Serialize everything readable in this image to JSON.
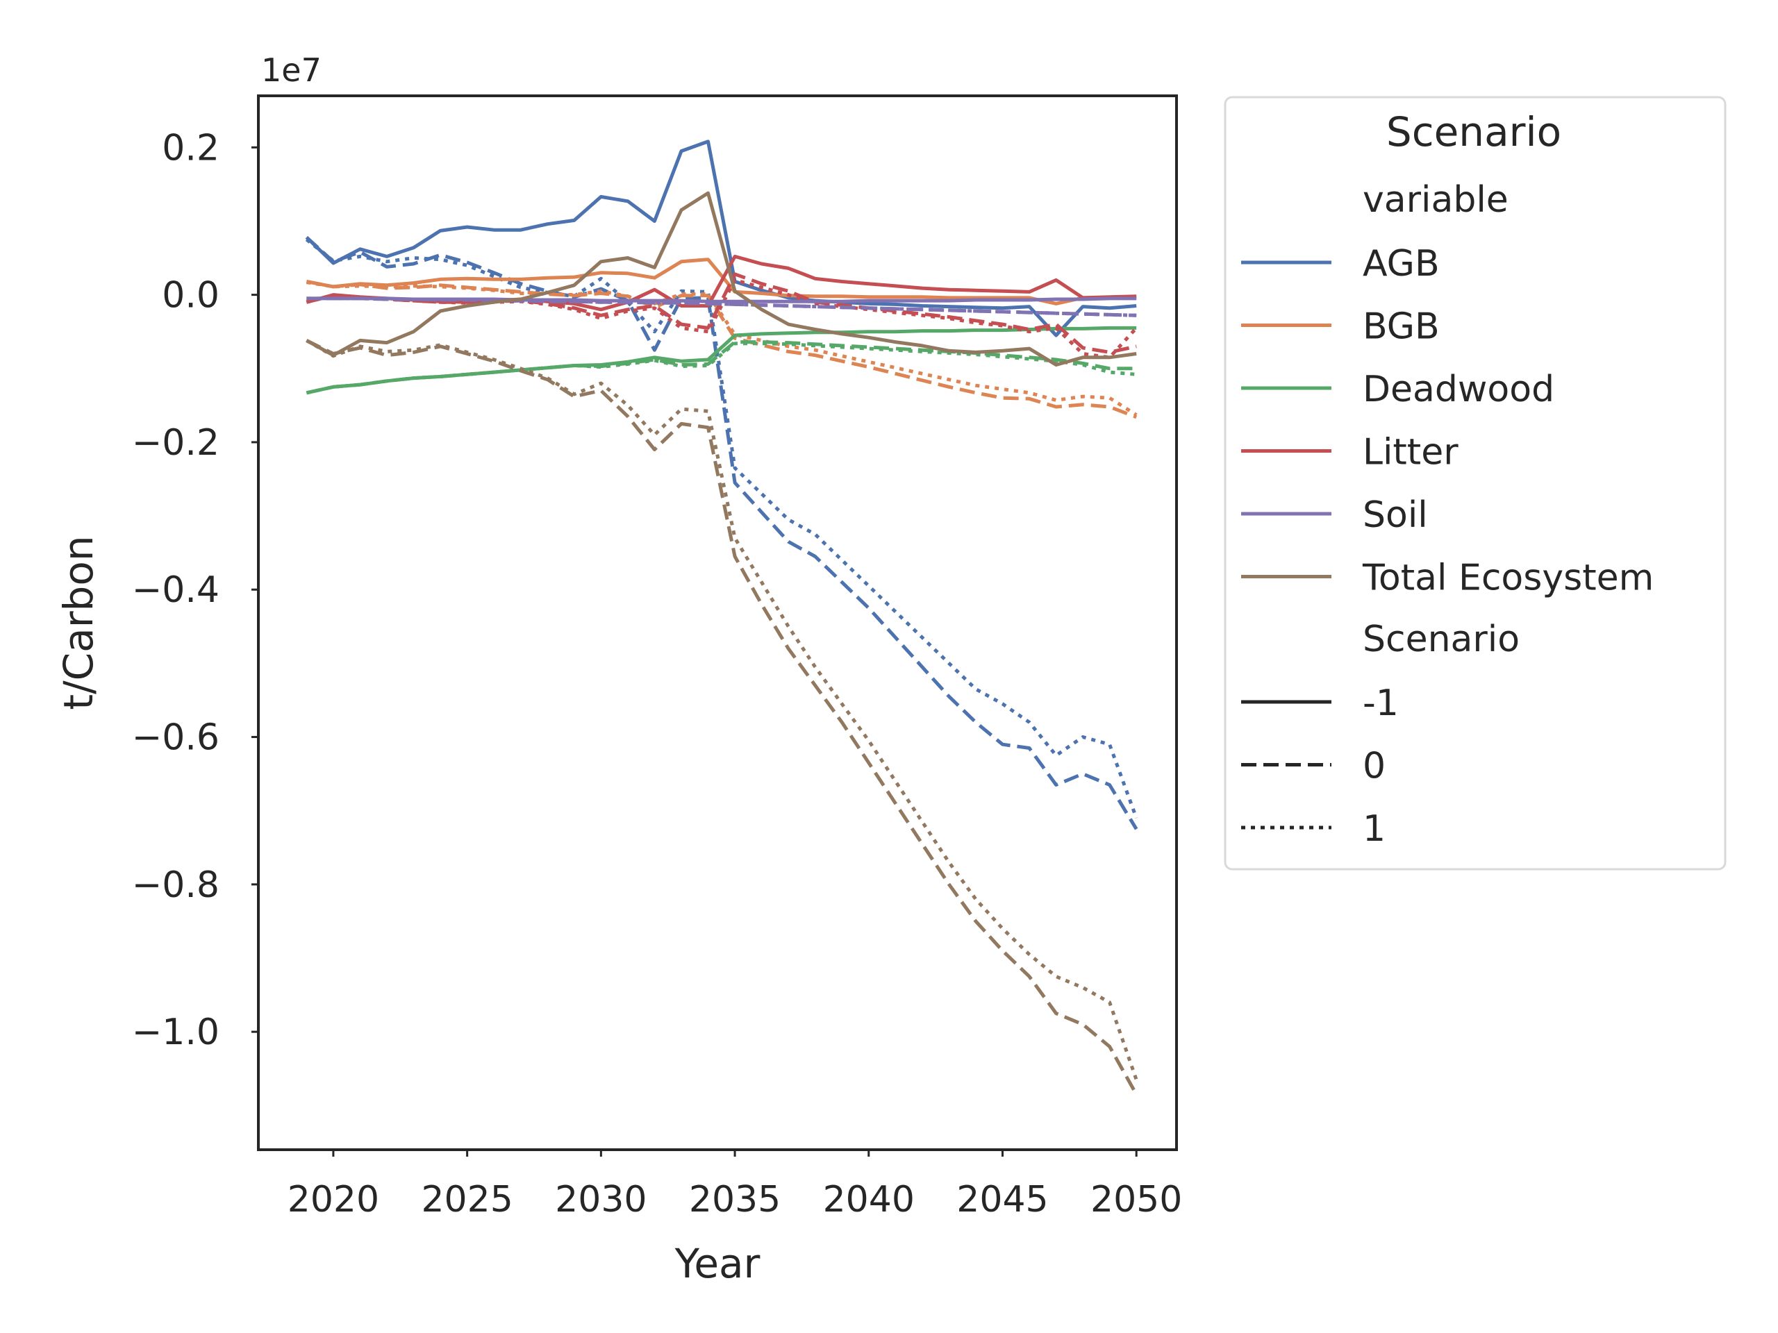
{
  "chart_data": {
    "type": "line",
    "title": "",
    "xlabel": "Year",
    "ylabel": "t/Carbon",
    "y_offset_label": "1e7",
    "xlim": [
      2017.2,
      2051.5
    ],
    "ylim": [
      -1.16,
      0.27
    ],
    "x_ticks": [
      2020,
      2025,
      2030,
      2035,
      2040,
      2045,
      2050
    ],
    "y_ticks": [
      0.2,
      0.0,
      -0.2,
      -0.4,
      -0.6,
      -0.8,
      -1.0
    ],
    "y_tick_labels": [
      "0.2",
      "0.0",
      "−0.2",
      "−0.4",
      "−0.6",
      "−0.8",
      "−1.0"
    ],
    "grid": false,
    "legend": {
      "position": "outside-right",
      "title": "Scenario",
      "hue_header": "variable",
      "style_header": "Scenario",
      "variables": [
        {
          "name": "AGB",
          "color": "#4c72b0"
        },
        {
          "name": "BGB",
          "color": "#dd8452"
        },
        {
          "name": "Deadwood",
          "color": "#55a868"
        },
        {
          "name": "Litter",
          "color": "#c44e52"
        },
        {
          "name": "Soil",
          "color": "#8172b3"
        },
        {
          "name": "Total Ecosystem",
          "color": "#937860"
        }
      ],
      "scenarios": [
        {
          "label": "-1",
          "dash": "solid"
        },
        {
          "label": "0",
          "dash": "dashed"
        },
        {
          "label": "1",
          "dash": "dotted"
        }
      ]
    },
    "x": [
      2019,
      2020,
      2021,
      2022,
      2023,
      2024,
      2025,
      2026,
      2027,
      2028,
      2029,
      2030,
      2031,
      2032,
      2033,
      2034,
      2035,
      2036,
      2037,
      2038,
      2039,
      2040,
      2041,
      2042,
      2043,
      2044,
      2045,
      2046,
      2047,
      2048,
      2049,
      2050
    ],
    "series": [
      {
        "variable": "AGB",
        "scenario": "-1",
        "values": [
          0.078,
          0.043,
          0.062,
          0.052,
          0.064,
          0.087,
          0.092,
          0.088,
          0.088,
          0.096,
          0.101,
          0.133,
          0.127,
          0.1,
          0.195,
          0.208,
          0.018,
          0.006,
          -0.004,
          -0.008,
          -0.01,
          -0.012,
          -0.013,
          -0.015,
          -0.016,
          -0.017,
          -0.018,
          -0.016,
          -0.055,
          -0.016,
          -0.018,
          -0.015
        ]
      },
      {
        "variable": "AGB",
        "scenario": "0",
        "values": [
          0.078,
          0.045,
          0.058,
          0.038,
          0.042,
          0.054,
          0.044,
          0.03,
          0.015,
          0.005,
          -0.003,
          0.008,
          -0.008,
          -0.075,
          -0.005,
          -0.004,
          -0.255,
          -0.295,
          -0.335,
          -0.355,
          -0.39,
          -0.425,
          -0.465,
          -0.505,
          -0.545,
          -0.58,
          -0.61,
          -0.615,
          -0.665,
          -0.65,
          -0.665,
          -0.725
        ]
      },
      {
        "variable": "AGB",
        "scenario": "1",
        "values": [
          0.075,
          0.046,
          0.052,
          0.045,
          0.05,
          0.048,
          0.04,
          0.025,
          0.01,
          0.003,
          -0.002,
          0.022,
          -0.01,
          -0.05,
          0.005,
          0.004,
          -0.235,
          -0.27,
          -0.305,
          -0.325,
          -0.36,
          -0.395,
          -0.43,
          -0.465,
          -0.5,
          -0.535,
          -0.555,
          -0.58,
          -0.625,
          -0.6,
          -0.61,
          -0.71
        ]
      },
      {
        "variable": "BGB",
        "scenario": "-1",
        "values": [
          0.018,
          0.011,
          0.015,
          0.013,
          0.016,
          0.021,
          0.022,
          0.021,
          0.021,
          0.023,
          0.024,
          0.03,
          0.029,
          0.023,
          0.045,
          0.048,
          0.004,
          0.002,
          -0.001,
          -0.002,
          -0.002,
          -0.003,
          -0.003,
          -0.003,
          -0.004,
          -0.004,
          -0.004,
          -0.004,
          -0.012,
          -0.004,
          -0.004,
          -0.004
        ]
      },
      {
        "variable": "BGB",
        "scenario": "0",
        "values": [
          0.018,
          0.011,
          0.014,
          0.009,
          0.01,
          0.013,
          0.01,
          0.007,
          0.004,
          0.001,
          -0.001,
          0.002,
          -0.002,
          -0.017,
          -0.001,
          -0.001,
          -0.059,
          -0.068,
          -0.077,
          -0.082,
          -0.09,
          -0.098,
          -0.107,
          -0.116,
          -0.125,
          -0.133,
          -0.14,
          -0.141,
          -0.152,
          -0.149,
          -0.152,
          -0.166
        ]
      },
      {
        "variable": "BGB",
        "scenario": "1",
        "values": [
          0.017,
          0.011,
          0.012,
          0.011,
          0.012,
          0.011,
          0.009,
          0.006,
          0.002,
          0.001,
          0.0,
          0.005,
          -0.002,
          -0.012,
          0.001,
          0.001,
          -0.054,
          -0.062,
          -0.07,
          -0.075,
          -0.083,
          -0.091,
          -0.099,
          -0.107,
          -0.115,
          -0.123,
          -0.128,
          -0.133,
          -0.143,
          -0.138,
          -0.14,
          -0.163
        ]
      },
      {
        "variable": "Deadwood",
        "scenario": "-1",
        "values": [
          -0.133,
          -0.125,
          -0.122,
          -0.117,
          -0.113,
          -0.111,
          -0.108,
          -0.105,
          -0.102,
          -0.099,
          -0.096,
          -0.095,
          -0.091,
          -0.085,
          -0.09,
          -0.088,
          -0.055,
          -0.053,
          -0.052,
          -0.051,
          -0.051,
          -0.05,
          -0.05,
          -0.049,
          -0.049,
          -0.048,
          -0.048,
          -0.047,
          -0.046,
          -0.046,
          -0.045,
          -0.045
        ]
      },
      {
        "variable": "Deadwood",
        "scenario": "0",
        "values": [
          -0.133,
          -0.125,
          -0.122,
          -0.117,
          -0.113,
          -0.111,
          -0.108,
          -0.105,
          -0.102,
          -0.099,
          -0.096,
          -0.097,
          -0.093,
          -0.088,
          -0.095,
          -0.094,
          -0.064,
          -0.064,
          -0.065,
          -0.067,
          -0.069,
          -0.071,
          -0.073,
          -0.075,
          -0.077,
          -0.079,
          -0.082,
          -0.085,
          -0.088,
          -0.093,
          -0.1,
          -0.1
        ]
      },
      {
        "variable": "Deadwood",
        "scenario": "1",
        "values": [
          -0.133,
          -0.125,
          -0.122,
          -0.117,
          -0.113,
          -0.111,
          -0.108,
          -0.105,
          -0.102,
          -0.099,
          -0.096,
          -0.098,
          -0.094,
          -0.089,
          -0.097,
          -0.096,
          -0.066,
          -0.066,
          -0.067,
          -0.069,
          -0.071,
          -0.073,
          -0.075,
          -0.077,
          -0.079,
          -0.081,
          -0.084,
          -0.087,
          -0.09,
          -0.095,
          -0.105,
          -0.108
        ]
      },
      {
        "variable": "Litter",
        "scenario": "-1",
        "values": [
          -0.01,
          0.0,
          -0.003,
          -0.005,
          -0.007,
          -0.009,
          -0.01,
          -0.008,
          -0.006,
          -0.009,
          -0.012,
          -0.02,
          -0.01,
          0.007,
          -0.015,
          -0.015,
          0.052,
          0.042,
          0.036,
          0.022,
          0.018,
          0.015,
          0.012,
          0.009,
          0.007,
          0.006,
          0.005,
          0.004,
          0.02,
          -0.004,
          -0.003,
          -0.002
        ]
      },
      {
        "variable": "Litter",
        "scenario": "0",
        "values": [
          -0.01,
          -0.001,
          -0.004,
          -0.006,
          -0.008,
          -0.01,
          -0.01,
          -0.009,
          -0.008,
          -0.012,
          -0.018,
          -0.028,
          -0.02,
          -0.015,
          -0.04,
          -0.045,
          0.028,
          0.015,
          0.005,
          -0.01,
          -0.014,
          -0.018,
          -0.022,
          -0.026,
          -0.03,
          -0.035,
          -0.04,
          -0.047,
          -0.04,
          -0.072,
          -0.078,
          -0.07
        ]
      },
      {
        "variable": "Litter",
        "scenario": "1",
        "values": [
          -0.01,
          -0.001,
          -0.004,
          -0.006,
          -0.008,
          -0.01,
          -0.011,
          -0.01,
          -0.009,
          -0.013,
          -0.02,
          -0.032,
          -0.022,
          -0.018,
          -0.045,
          -0.05,
          0.02,
          0.01,
          0.0,
          -0.012,
          -0.016,
          -0.02,
          -0.024,
          -0.028,
          -0.032,
          -0.038,
          -0.042,
          -0.05,
          -0.045,
          -0.08,
          -0.085,
          -0.045
        ]
      },
      {
        "variable": "Soil",
        "scenario": "-1",
        "values": [
          -0.005,
          -0.005,
          -0.005,
          -0.005,
          -0.006,
          -0.006,
          -0.006,
          -0.006,
          -0.007,
          -0.007,
          -0.007,
          -0.008,
          -0.008,
          -0.008,
          -0.008,
          -0.009,
          -0.009,
          -0.009,
          -0.009,
          -0.009,
          -0.009,
          -0.008,
          -0.008,
          -0.008,
          -0.008,
          -0.007,
          -0.007,
          -0.007,
          -0.006,
          -0.006,
          -0.005,
          -0.005
        ]
      },
      {
        "variable": "Soil",
        "scenario": "0",
        "values": [
          -0.005,
          -0.005,
          -0.005,
          -0.006,
          -0.006,
          -0.007,
          -0.007,
          -0.008,
          -0.008,
          -0.009,
          -0.009,
          -0.01,
          -0.01,
          -0.011,
          -0.011,
          -0.012,
          -0.013,
          -0.014,
          -0.015,
          -0.016,
          -0.017,
          -0.018,
          -0.019,
          -0.02,
          -0.021,
          -0.022,
          -0.023,
          -0.024,
          -0.025,
          -0.026,
          -0.027,
          -0.028
        ]
      },
      {
        "variable": "Soil",
        "scenario": "1",
        "values": [
          -0.005,
          -0.005,
          -0.005,
          -0.006,
          -0.006,
          -0.007,
          -0.007,
          -0.008,
          -0.008,
          -0.009,
          -0.009,
          -0.01,
          -0.01,
          -0.011,
          -0.011,
          -0.012,
          -0.013,
          -0.014,
          -0.015,
          -0.016,
          -0.017,
          -0.018,
          -0.019,
          -0.02,
          -0.021,
          -0.022,
          -0.023,
          -0.024,
          -0.025,
          -0.026,
          -0.027,
          -0.028
        ]
      },
      {
        "variable": "Total Ecosystem",
        "scenario": "-1",
        "values": [
          -0.062,
          -0.082,
          -0.062,
          -0.065,
          -0.05,
          -0.022,
          -0.015,
          -0.01,
          -0.006,
          0.003,
          0.013,
          0.045,
          0.05,
          0.037,
          0.115,
          0.138,
          0.005,
          -0.02,
          -0.04,
          -0.047,
          -0.053,
          -0.058,
          -0.064,
          -0.069,
          -0.076,
          -0.078,
          -0.076,
          -0.073,
          -0.095,
          -0.085,
          -0.085,
          -0.08
        ]
      },
      {
        "variable": "Total Ecosystem",
        "scenario": "0",
        "values": [
          -0.062,
          -0.08,
          -0.072,
          -0.082,
          -0.078,
          -0.07,
          -0.08,
          -0.09,
          -0.103,
          -0.115,
          -0.138,
          -0.13,
          -0.165,
          -0.21,
          -0.175,
          -0.18,
          -0.355,
          -0.42,
          -0.48,
          -0.53,
          -0.58,
          -0.635,
          -0.69,
          -0.745,
          -0.8,
          -0.85,
          -0.89,
          -0.925,
          -0.975,
          -0.99,
          -1.02,
          -1.085
        ]
      },
      {
        "variable": "Total Ecosystem",
        "scenario": "1",
        "values": [
          -0.062,
          -0.083,
          -0.07,
          -0.077,
          -0.075,
          -0.068,
          -0.078,
          -0.088,
          -0.1,
          -0.113,
          -0.135,
          -0.12,
          -0.15,
          -0.19,
          -0.155,
          -0.158,
          -0.33,
          -0.39,
          -0.45,
          -0.505,
          -0.555,
          -0.605,
          -0.66,
          -0.715,
          -0.77,
          -0.82,
          -0.86,
          -0.895,
          -0.925,
          -0.94,
          -0.96,
          -1.065
        ]
      }
    ]
  }
}
